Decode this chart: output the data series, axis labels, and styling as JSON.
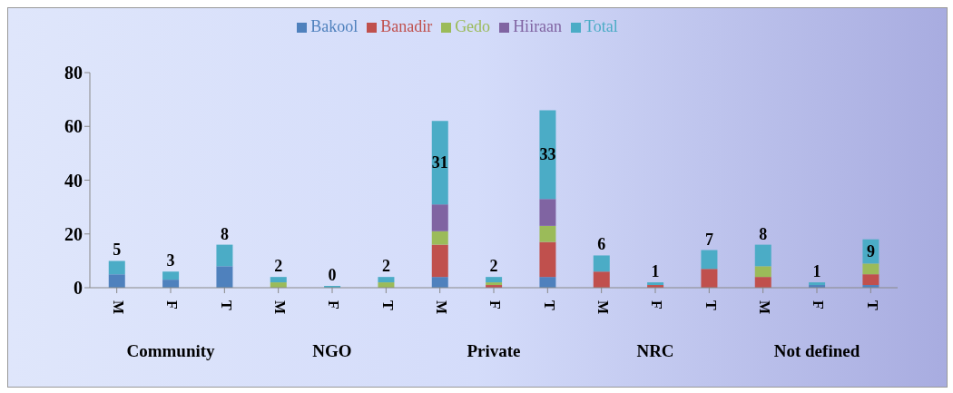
{
  "chart_data": {
    "type": "bar",
    "stacked": true,
    "categories": [
      "M",
      "F",
      "T",
      "M",
      "F",
      "T",
      "M",
      "F",
      "T",
      "M",
      "F",
      "T",
      "M",
      "F",
      "T"
    ],
    "annotations": [
      "Community",
      "NGO",
      "Private",
      "NRC",
      "Not defined"
    ],
    "series": [
      {
        "name": "Bakool",
        "color": "#4f81bd",
        "values": [
          5,
          3,
          8,
          0,
          0,
          0,
          4,
          0,
          4,
          0,
          0,
          0,
          0,
          1,
          1
        ]
      },
      {
        "name": "Banadir",
        "color": "#c0504d",
        "values": [
          0,
          0,
          0,
          0,
          0,
          0,
          12,
          1,
          13,
          6,
          1,
          7,
          4,
          0,
          4
        ]
      },
      {
        "name": "Gedo",
        "color": "#9bbb59",
        "values": [
          0,
          0,
          0,
          2,
          0,
          2,
          5,
          1,
          6,
          0,
          0,
          0,
          4,
          0,
          4
        ]
      },
      {
        "name": "Hiiraan",
        "color": "#8064a2",
        "values": [
          0,
          0,
          0,
          0,
          0,
          0,
          10,
          0,
          10,
          0,
          0,
          0,
          0,
          0,
          0
        ]
      },
      {
        "name": "Total",
        "color": "#4bacc6",
        "values": [
          5,
          3,
          8,
          2,
          0,
          2,
          31,
          2,
          33,
          6,
          1,
          7,
          8,
          1,
          9
        ],
        "value_labels": [
          "5",
          "3",
          "8",
          "2",
          "0",
          "2",
          "31",
          "2",
          "33",
          "6",
          "1",
          "7",
          "8",
          "1",
          "9"
        ]
      }
    ],
    "ylim": [
      0,
      80
    ],
    "yticks": [
      0,
      20,
      40,
      60,
      80
    ],
    "grid": false,
    "legend": "top"
  }
}
